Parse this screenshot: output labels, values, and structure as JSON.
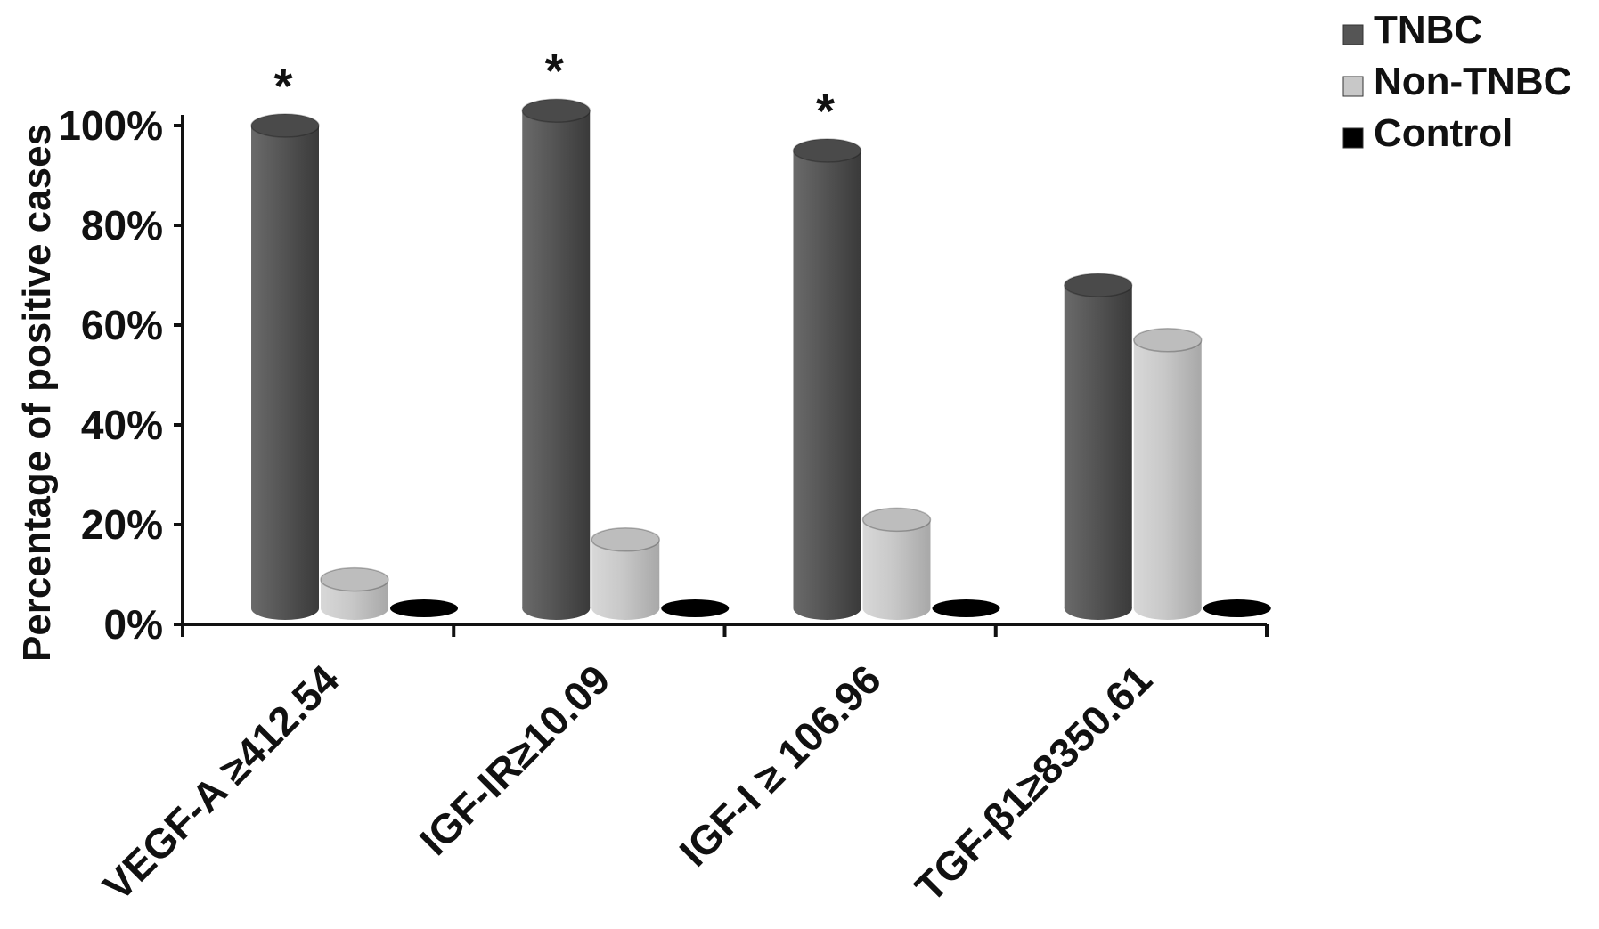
{
  "chart_data": {
    "type": "bar",
    "style": "3d-cylinder",
    "ylabel": "Percentage of positive cases",
    "xlabel": "",
    "ylim": [
      0,
      100
    ],
    "yticks": [
      "0%",
      "20%",
      "40%",
      "60%",
      "80%",
      "100%"
    ],
    "ytick_values": [
      0,
      20,
      40,
      60,
      80,
      100
    ],
    "categories": [
      "VEGF-A ≥412.54",
      "IGF-IR≥10.09",
      "IGF-I ≥ 106.96",
      "TGF-β1≥8350.61"
    ],
    "series": [
      {
        "name": "TNBC",
        "color": "#555555",
        "values": [
          100,
          103,
          95,
          68
        ]
      },
      {
        "name": "Non-TNBC",
        "color": "#c8c8c8",
        "values": [
          9,
          17,
          21,
          57
        ]
      },
      {
        "name": "Control",
        "color": "#000000",
        "values": [
          0,
          0,
          0,
          0
        ]
      }
    ],
    "annotations": [
      {
        "text": "*",
        "category": 0,
        "series": "TNBC"
      },
      {
        "text": "*",
        "category": 1,
        "series": "TNBC"
      },
      {
        "text": "*",
        "category": 2,
        "series": "TNBC"
      }
    ],
    "legend_position": "top-right",
    "grid": false
  }
}
